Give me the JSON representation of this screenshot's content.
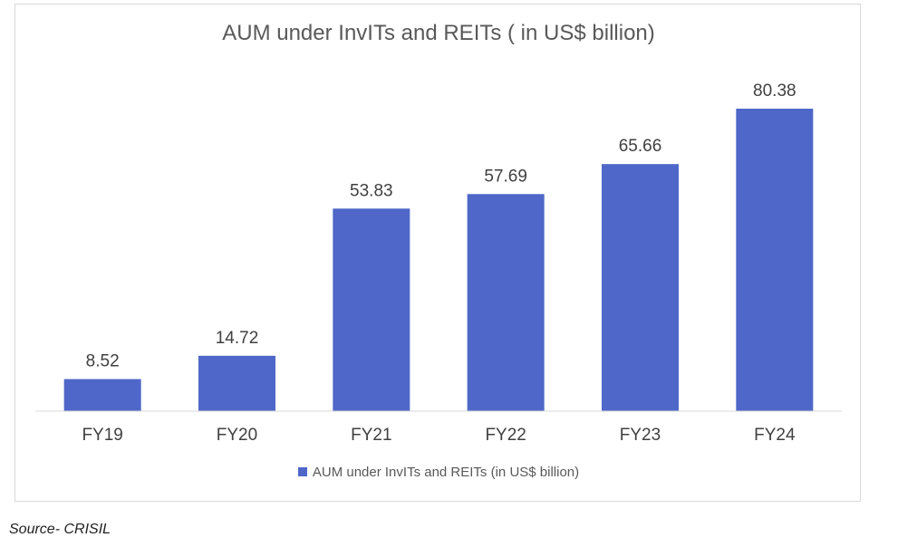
{
  "chart_data": {
    "type": "bar",
    "title": "AUM under InvITs and REITs ( in US$ billion)",
    "categories": [
      "FY19",
      "FY20",
      "FY21",
      "FY22",
      "FY23",
      "FY24"
    ],
    "series": [
      {
        "name": "AUM under InvITs and REITs (in US$ billion)",
        "values": [
          8.52,
          14.72,
          53.83,
          57.69,
          65.66,
          80.38
        ],
        "value_labels": [
          "8.52",
          "14.72",
          "53.83",
          "57.69",
          "65.66",
          "80.38"
        ],
        "color": "#4e67c8"
      }
    ],
    "xlabel": "",
    "ylabel": "",
    "ylim": [
      0,
      90
    ],
    "grid": false,
    "legend_position": "bottom"
  },
  "footer": {
    "source": "Source- CRISIL"
  }
}
